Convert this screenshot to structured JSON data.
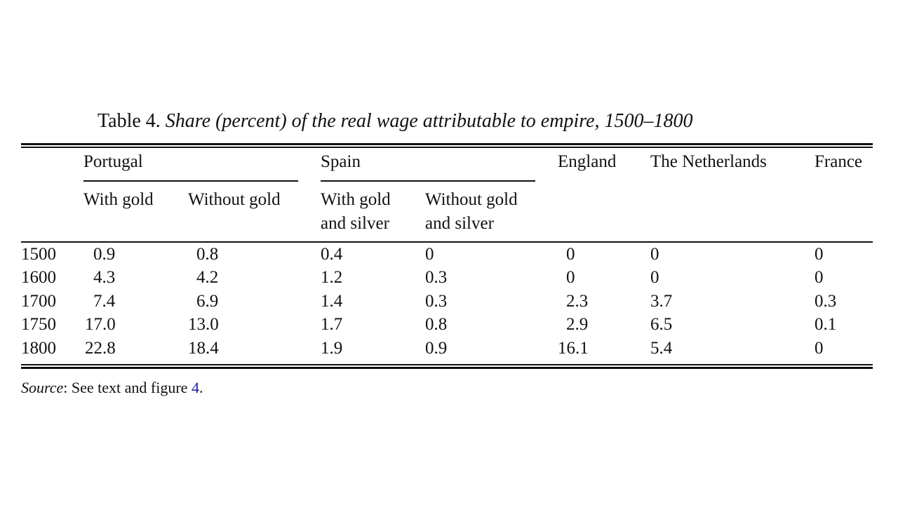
{
  "caption": {
    "label": "Table 4.",
    "title": "Share (percent) of the real wage attributable to empire, 1500–1800"
  },
  "groups": {
    "portugal": "Portugal",
    "spain": "Spain",
    "england": "England",
    "netherlands": "The Netherlands",
    "france": "France"
  },
  "subheaders": {
    "pt_with": "With gold",
    "pt_without": "Without gold",
    "es_with_line1": "With gold",
    "es_with_line2": "and silver",
    "es_without_line1": "Without gold",
    "es_without_line2": "and silver"
  },
  "rows": [
    {
      "year": "1500",
      "pt_with": "0.9",
      "pt_without": "0.8",
      "es_with": "0.4",
      "es_without": "0",
      "england": "0",
      "netherlands": "0",
      "france": "0"
    },
    {
      "year": "1600",
      "pt_with": "4.3",
      "pt_without": "4.2",
      "es_with": "1.2",
      "es_without": "0.3",
      "england": "0",
      "netherlands": "0",
      "france": "0"
    },
    {
      "year": "1700",
      "pt_with": "7.4",
      "pt_without": "6.9",
      "es_with": "1.4",
      "es_without": "0.3",
      "england": "2.3",
      "netherlands": "3.7",
      "france": "0.3"
    },
    {
      "year": "1750",
      "pt_with": "17.0",
      "pt_without": "13.0",
      "es_with": "1.7",
      "es_without": "0.8",
      "england": "2.9",
      "netherlands": "6.5",
      "france": "0.1"
    },
    {
      "year": "1800",
      "pt_with": "22.8",
      "pt_without": "18.4",
      "es_with": "1.9",
      "es_without": "0.9",
      "england": "16.1",
      "netherlands": "5.4",
      "france": "0"
    }
  ],
  "source": {
    "label": "Source",
    "text": ": See text and figure ",
    "ref": "4",
    "end": "."
  }
}
